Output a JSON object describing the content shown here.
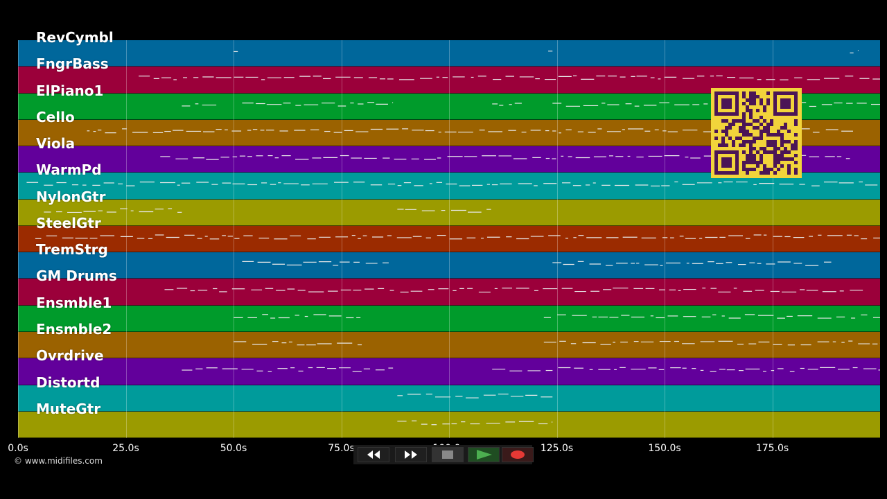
{
  "tracks": [
    {
      "name": "RevCymbl",
      "color": "#00679b"
    },
    {
      "name": "FngrBass",
      "color": "#9b003a"
    },
    {
      "name": "ElPiano1",
      "color": "#009b2b"
    },
    {
      "name": "Cello",
      "color": "#9b6200"
    },
    {
      "name": "Viola",
      "color": "#62009b"
    },
    {
      "name": "WarmPd",
      "color": "#009b9b"
    },
    {
      "name": "NylonGtr",
      "color": "#9b9b00"
    },
    {
      "name": "SteelGtr",
      "color": "#9b2b00"
    },
    {
      "name": "TremStrg",
      "color": "#00679b"
    },
    {
      "name": "GM Drums",
      "color": "#9b003a"
    },
    {
      "name": "Ensmble1",
      "color": "#009b2b"
    },
    {
      "name": "Ensmble2",
      "color": "#9b6200"
    },
    {
      "name": "Ovrdrive",
      "color": "#62009b"
    },
    {
      "name": "Distortd",
      "color": "#009b9b"
    },
    {
      "name": "MuteGtr",
      "color": "#9b9b00"
    }
  ],
  "timeline": {
    "ticks": [
      "0.0s",
      "25.0s",
      "50.0s",
      "75.0s",
      "100.0s",
      "125.0s",
      "150.0s",
      "175.0s"
    ],
    "tick_values": [
      0,
      25,
      50,
      75,
      100,
      125,
      150,
      175
    ],
    "max_seconds": 200
  },
  "credit": "© www.midifiles.com",
  "transport": {
    "buttons": [
      {
        "name": "rewind",
        "icon": "rewind-icon",
        "color": "#ffffff"
      },
      {
        "name": "fast-forward",
        "icon": "fast-forward-icon",
        "color": "#ffffff"
      },
      {
        "name": "stop",
        "icon": "stop-icon",
        "color": "#888888"
      },
      {
        "name": "play",
        "icon": "play-icon",
        "color": "#4caf50"
      },
      {
        "name": "record",
        "icon": "record-icon",
        "color": "#e53935"
      }
    ]
  },
  "qr_code": {
    "icon": "qr-code-icon",
    "fg": "#4b1556",
    "bg": "#f2d43b"
  }
}
